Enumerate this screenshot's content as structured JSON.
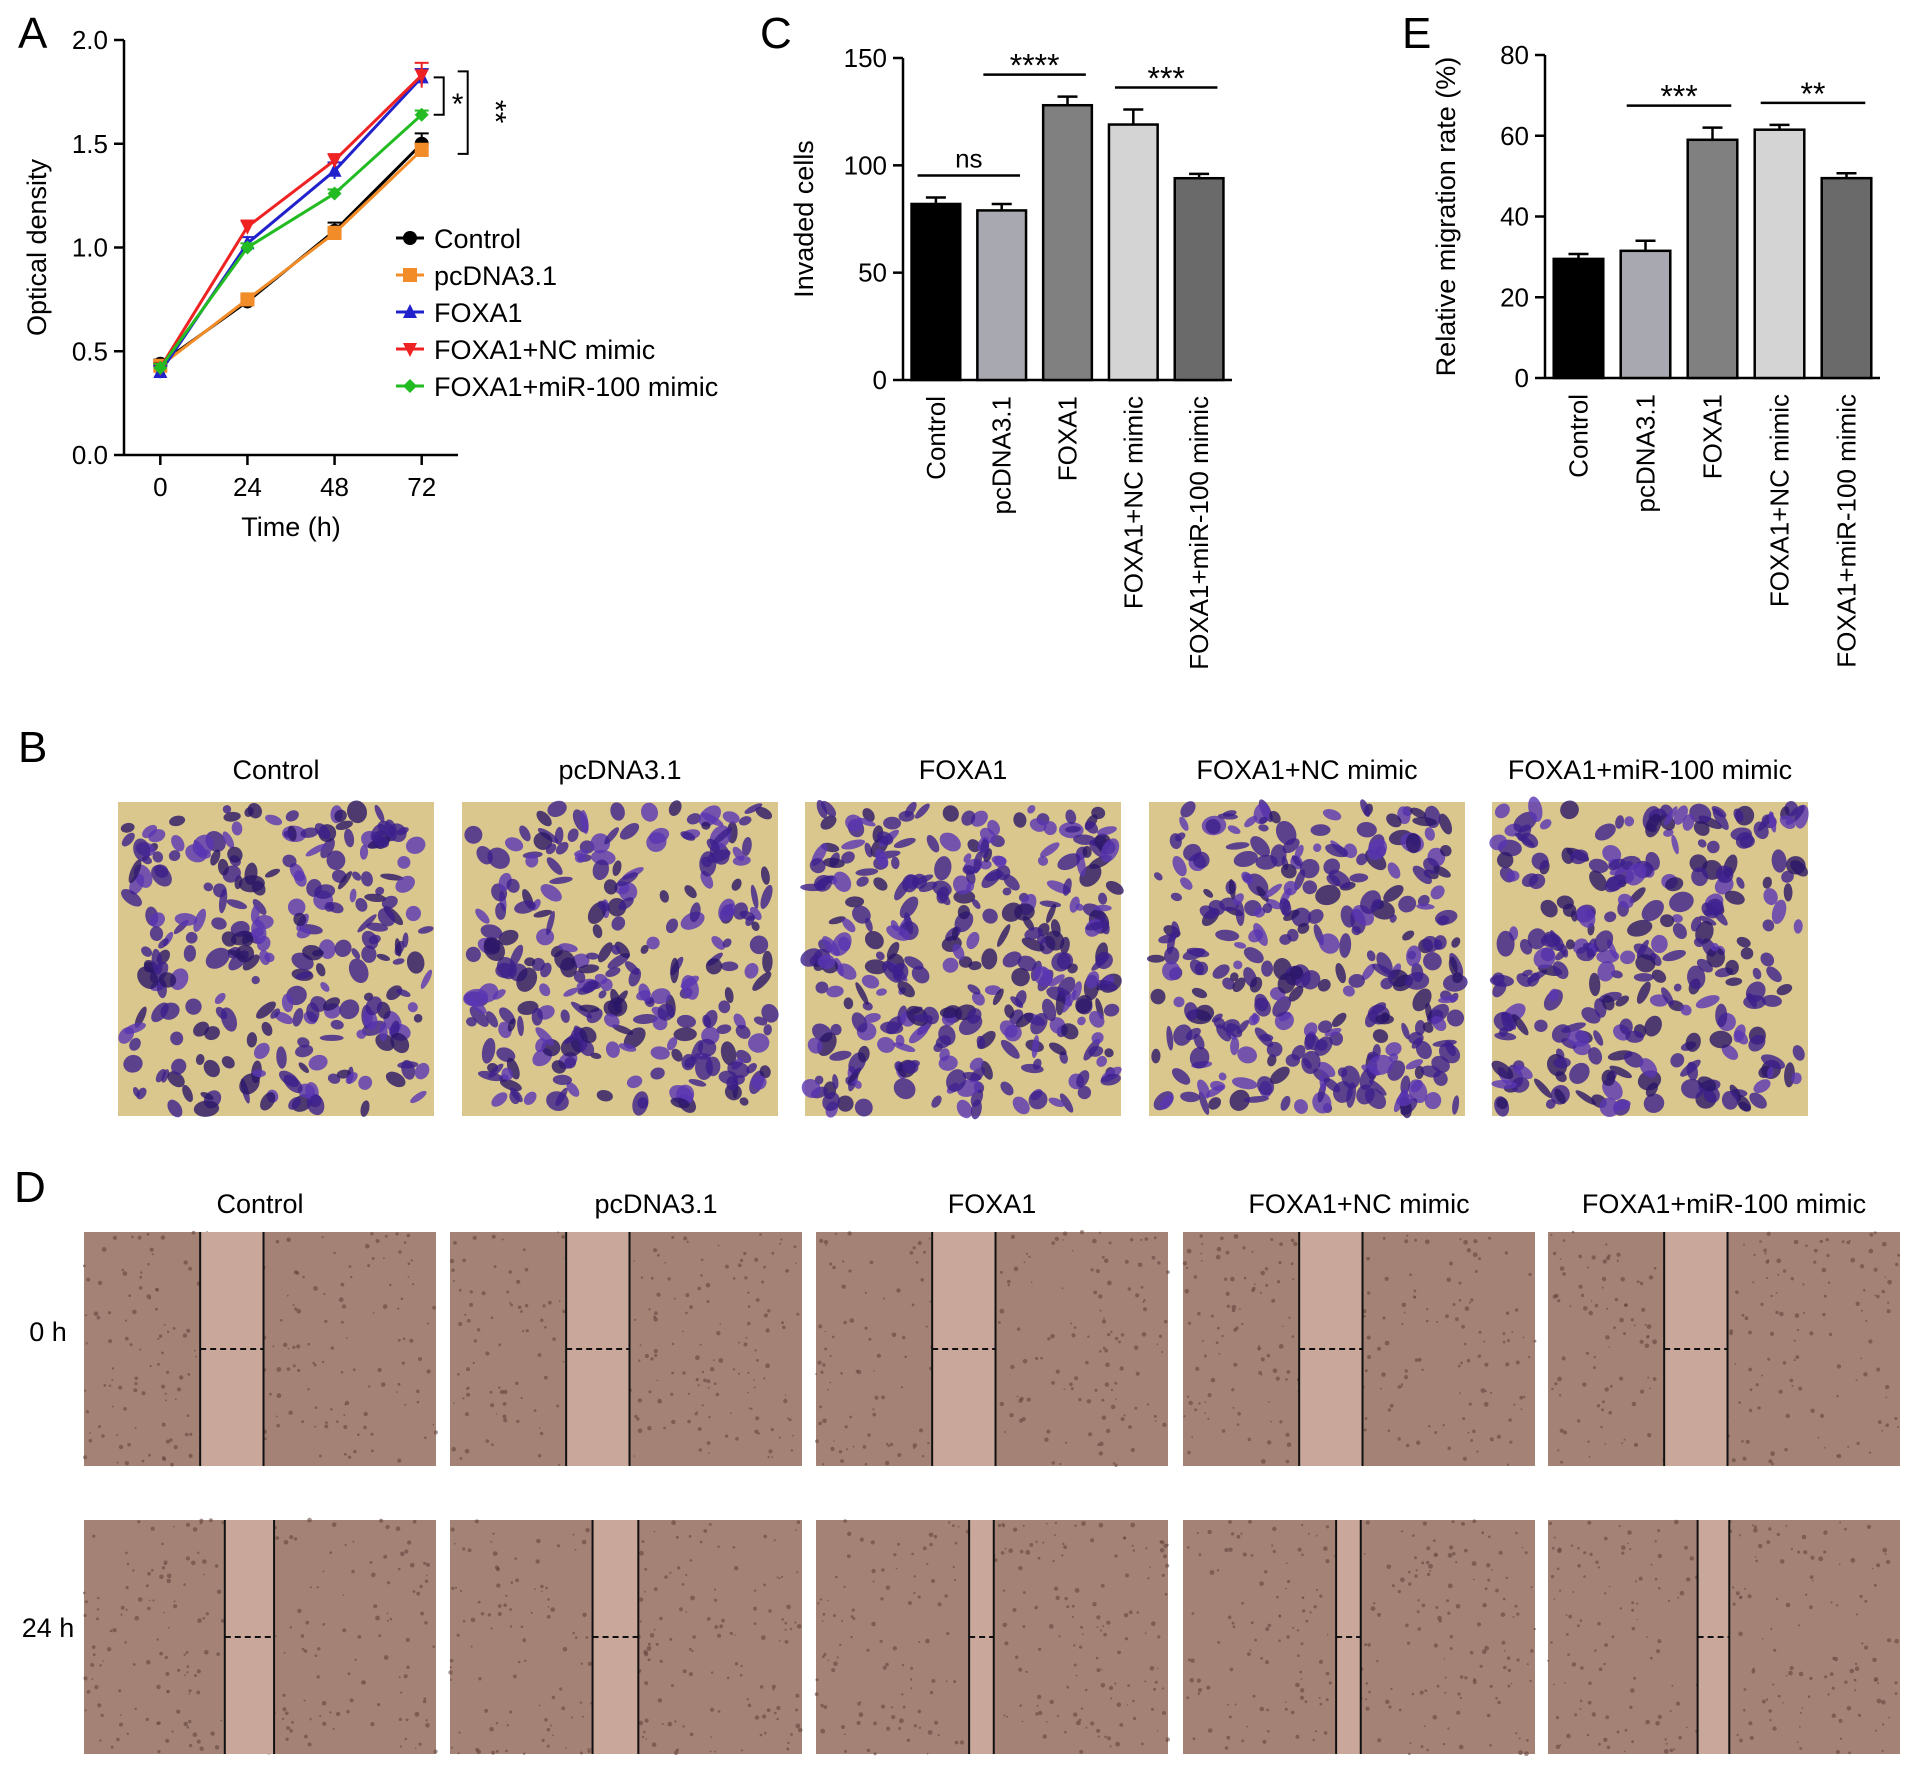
{
  "panel_letters": {
    "A": "A",
    "B": "B",
    "C": "C",
    "D": "D",
    "E": "E"
  },
  "colors": {
    "control": "#000000",
    "pcdna": "#f28c28",
    "foxa1": "#2222cc",
    "foxa1_nc": "#ee2222",
    "foxa1_mir": "#22bb22",
    "bar_control": "#000000",
    "bar_pcdna": "#a8a8b0",
    "bar_foxa1": "#808080",
    "bar_nc": "#d4d4d4",
    "bar_mir": "#6a6a6a",
    "stain_bg": "#d9c78e",
    "stain_cells": "#4b2aa0",
    "wound_bg": "#a48376",
    "wound_gap": "#c9a79a"
  },
  "chart_data": [
    {
      "panel": "A",
      "type": "line",
      "xlabel": "Time (h)",
      "ylabel": "Optical density",
      "x": [
        0,
        24,
        48,
        72
      ],
      "xlim": [
        -10,
        82
      ],
      "ylim": [
        0.0,
        2.0
      ],
      "yticks": [
        "0.0",
        "0.5",
        "1.0",
        "1.5",
        "2.0"
      ],
      "xticks": [
        "0",
        "24",
        "48",
        "72"
      ],
      "series": [
        {
          "name": "Control",
          "values": [
            0.44,
            0.74,
            1.08,
            1.5
          ],
          "err": [
            0.02,
            0.02,
            0.04,
            0.05
          ],
          "color": "#000000",
          "marker": "circle"
        },
        {
          "name": "pcDNA3.1",
          "values": [
            0.43,
            0.75,
            1.07,
            1.47
          ],
          "err": [
            0.02,
            0.02,
            0.03,
            0.03
          ],
          "color": "#f28c28",
          "marker": "square"
        },
        {
          "name": "FOXA1",
          "values": [
            0.4,
            1.02,
            1.37,
            1.82
          ],
          "err": [
            0.03,
            0.03,
            0.04,
            0.04
          ],
          "color": "#2222cc",
          "marker": "triangle-up"
        },
        {
          "name": "FOXA1+NC mimic",
          "values": [
            0.42,
            1.1,
            1.42,
            1.83
          ],
          "err": [
            0.02,
            0.03,
            0.03,
            0.06
          ],
          "color": "#ee2222",
          "marker": "triangle-down"
        },
        {
          "name": "FOXA1+miR-100 mimic",
          "values": [
            0.42,
            1.0,
            1.26,
            1.64
          ],
          "err": [
            0.02,
            0.02,
            0.02,
            0.02
          ],
          "color": "#22bb22",
          "marker": "diamond"
        }
      ],
      "significance": [
        "*",
        "**"
      ],
      "legend": "right"
    },
    {
      "panel": "C",
      "type": "bar",
      "ylabel": "Invaded cells",
      "categories": [
        "Control",
        "pcDNA3.1",
        "FOXA1",
        "FOXA1+NC mimic",
        "FOXA1+miR-100 mimic"
      ],
      "values": [
        82,
        79,
        128,
        119,
        94
      ],
      "err": [
        3,
        3,
        4,
        7,
        2
      ],
      "ylim": [
        0,
        150
      ],
      "yticks": [
        "0",
        "50",
        "100",
        "150"
      ],
      "significance": [
        {
          "label": "ns",
          "from": 0,
          "to": 1
        },
        {
          "label": "****",
          "from": 1,
          "to": 2
        },
        {
          "label": "***",
          "from": 3,
          "to": 4
        }
      ]
    },
    {
      "panel": "E",
      "type": "bar",
      "ylabel": "Relative migration rate (%)",
      "categories": [
        "Control",
        "pcDNA3.1",
        "FOXA1",
        "FOXA1+NC mimic",
        "FOXA1+miR-100 mimic"
      ],
      "values": [
        29.5,
        31.5,
        59,
        61.5,
        49.5
      ],
      "err": [
        1.2,
        2.5,
        3.0,
        1.2,
        1.2
      ],
      "ylim": [
        0,
        80
      ],
      "yticks": [
        "0",
        "20",
        "40",
        "60",
        "80"
      ],
      "significance": [
        {
          "label": "***",
          "from": 1,
          "to": 2
        },
        {
          "label": "**",
          "from": 3,
          "to": 4
        }
      ]
    }
  ],
  "panel_B": {
    "labels": [
      "Control",
      "pcDNA3.1",
      "FOXA1",
      "FOXA1+NC mimic",
      "FOXA1+miR-100 mimic"
    ],
    "cell_density": [
      0.45,
      0.5,
      0.72,
      0.65,
      0.55
    ]
  },
  "panel_D": {
    "labels": [
      "Control",
      "pcDNA3.1",
      "FOXA1",
      "FOXA1+NC mimic",
      "FOXA1+miR-100 mimic"
    ],
    "rows": [
      "0 h",
      "24 h"
    ],
    "gap_fraction_0h": [
      0.18,
      0.18,
      0.18,
      0.18,
      0.18
    ],
    "gap_fraction_24h": [
      0.14,
      0.13,
      0.07,
      0.07,
      0.09
    ]
  }
}
